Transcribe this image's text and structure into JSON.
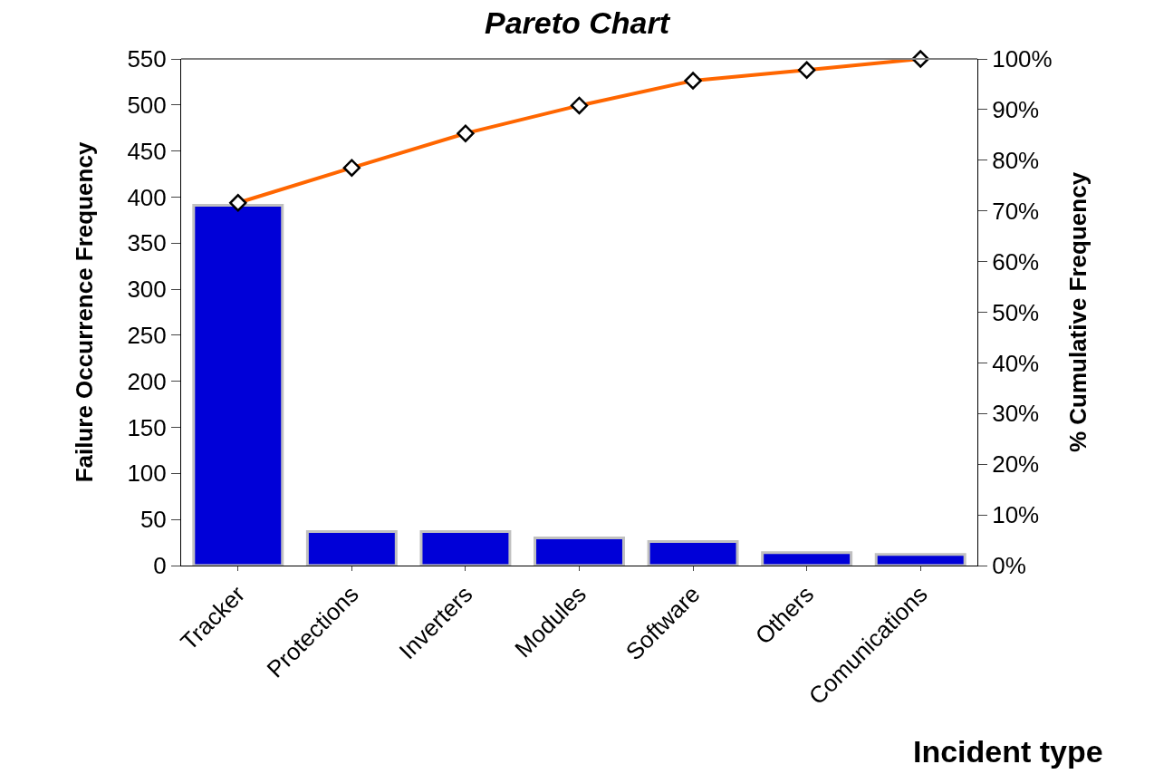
{
  "chart_data": {
    "type": "bar",
    "title": "Pareto Chart",
    "xlabel": "Incident type",
    "ylabel": "Failure Occurrence Frequency",
    "y2label": "% Cumulative Frequency",
    "categories": [
      "Tracker",
      "Protections",
      "Inverters",
      "Modules",
      "Software",
      "Others",
      "Comunications"
    ],
    "series": [
      {
        "color": "#0000d8",
        "values": [
          391,
          37,
          37,
          30,
          26,
          14,
          12
        ]
      },
      {
        "type": "line",
        "axis": "y2",
        "color": "#ff6600",
        "marker": "diamond",
        "values": [
          71.6,
          78.5,
          85.3,
          90.8,
          95.7,
          97.8,
          100
        ]
      }
    ],
    "ylim": [
      0,
      550
    ],
    "yticks": [
      0,
      50,
      100,
      150,
      200,
      250,
      300,
      350,
      400,
      450,
      500,
      550
    ],
    "y2lim": [
      0,
      100
    ],
    "y2ticks": [
      {
        "value": 0,
        "label": "0%"
      },
      {
        "value": 10,
        "label": "10%"
      },
      {
        "value": 20,
        "label": "20%"
      },
      {
        "value": 30,
        "label": "30%"
      },
      {
        "value": 40,
        "label": "40%"
      },
      {
        "value": 50,
        "label": "50%"
      },
      {
        "value": 60,
        "label": "60%"
      },
      {
        "value": 70,
        "label": "70%"
      },
      {
        "value": 80,
        "label": "80%"
      },
      {
        "value": 90,
        "label": "90%"
      },
      {
        "value": 100,
        "label": "100%"
      }
    ]
  }
}
